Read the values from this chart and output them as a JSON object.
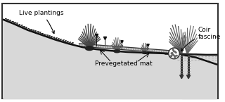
{
  "bg_color": "#e8e8e8",
  "border_color": "#444444",
  "label_live_plantings": "Live plantings",
  "label_prevegetated_mat": "Prevegetated mat",
  "label_coir_fascine": "Coir\nfascine",
  "annotation_fontsize": 6.5,
  "figsize": [
    3.2,
    1.45
  ],
  "dpi": 100
}
